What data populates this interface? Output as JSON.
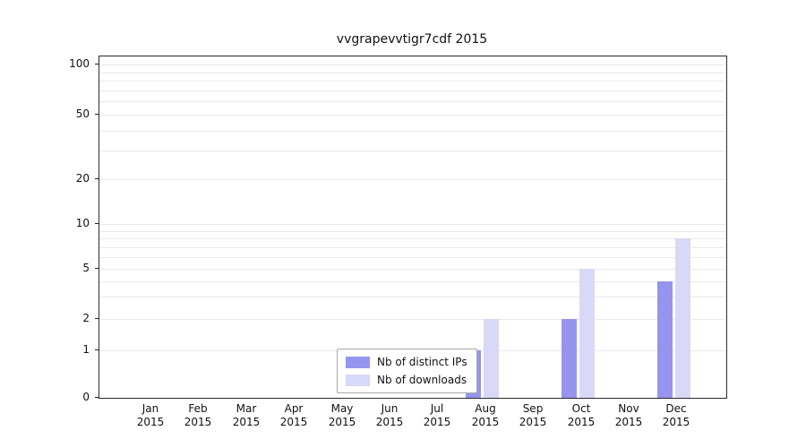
{
  "title": "vvgrapevvtigr7cdf 2015",
  "chart_data": {
    "type": "bar",
    "categories": [
      "Jan 2015",
      "Feb 2015",
      "Mar 2015",
      "Apr 2015",
      "May 2015",
      "Jun 2015",
      "Jul 2015",
      "Aug 2015",
      "Sep 2015",
      "Oct 2015",
      "Nov 2015",
      "Dec 2015"
    ],
    "series": [
      {
        "name": "Nb of distinct IPs",
        "color": "#9595ee",
        "values": [
          0,
          0,
          0,
          0,
          0,
          0,
          0,
          1,
          0,
          2,
          0,
          4
        ]
      },
      {
        "name": "Nb of downloads",
        "color": "#d8d8f8",
        "values": [
          0,
          0,
          0,
          0,
          0,
          0,
          0,
          2,
          0,
          5,
          0,
          8
        ]
      }
    ],
    "title": "vvgrapevvtigr7cdf 2015",
    "xlabel": "",
    "ylabel": "",
    "y_ticks": [
      0,
      1,
      2,
      5,
      10,
      20,
      50,
      100
    ],
    "minor_grid_values": [
      1,
      2,
      3,
      4,
      5,
      6,
      7,
      8,
      9,
      10,
      20,
      30,
      40,
      50,
      60,
      70,
      80,
      90,
      100
    ],
    "ylim": [
      0,
      100
    ],
    "scale": "symlog",
    "grid": "horizontal",
    "legend_position": "inside-bottom-center"
  },
  "x_axis": {
    "months": [
      "Jan",
      "Feb",
      "Mar",
      "Apr",
      "May",
      "Jun",
      "Jul",
      "Aug",
      "Sep",
      "Oct",
      "Nov",
      "Dec"
    ],
    "year": "2015"
  },
  "legend": {
    "items": [
      {
        "label": "Nb of distinct IPs"
      },
      {
        "label": "Nb of downloads"
      }
    ]
  }
}
